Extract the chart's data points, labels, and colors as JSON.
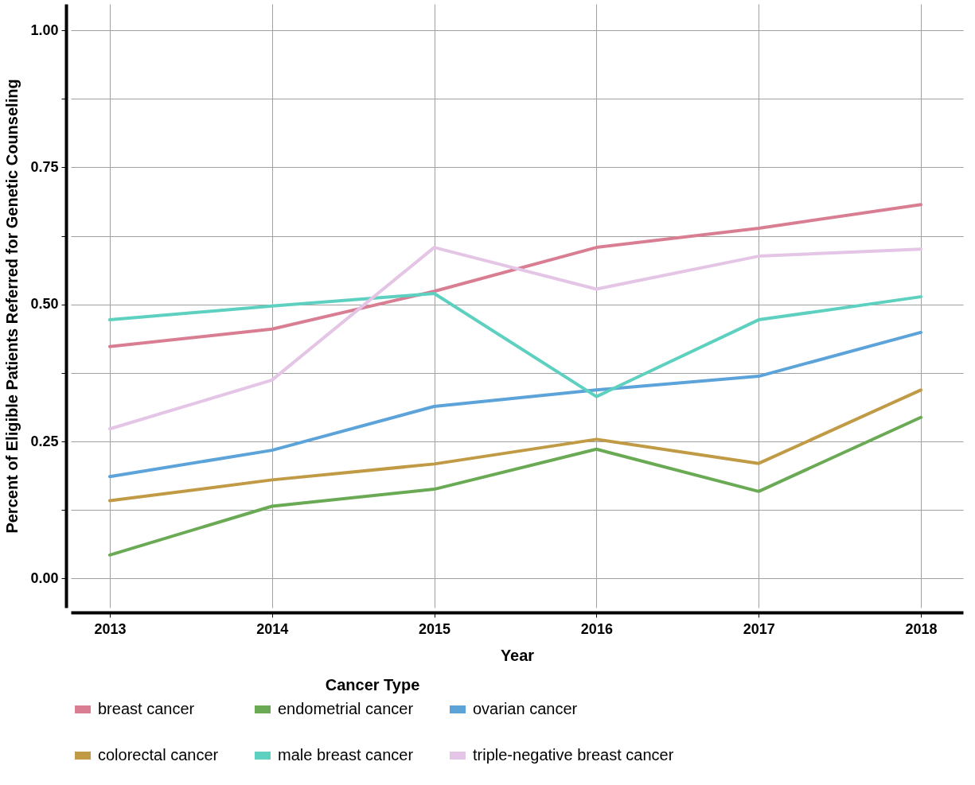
{
  "chart_data": {
    "type": "line",
    "xlabel": "Year",
    "ylabel": "Percent of Eligible Patients Referred for Genetic Counseling",
    "legend_title": "Cancer Type",
    "x": [
      2013,
      2014,
      2015,
      2016,
      2017,
      2018
    ],
    "series": [
      {
        "name": "breast cancer",
        "color": "#d97e92",
        "values": [
          0.423,
          0.455,
          0.524,
          0.604,
          0.639,
          0.682
        ]
      },
      {
        "name": "endometrial cancer",
        "color": "#6aaa55",
        "values": [
          0.043,
          0.132,
          0.163,
          0.236,
          0.159,
          0.294
        ]
      },
      {
        "name": "ovarian cancer",
        "color": "#5ba3d9",
        "values": [
          0.186,
          0.234,
          0.314,
          0.344,
          0.369,
          0.449
        ]
      },
      {
        "name": "colorectal cancer",
        "color": "#c09a45",
        "values": [
          0.142,
          0.18,
          0.209,
          0.254,
          0.21,
          0.344
        ]
      },
      {
        "name": "male breast cancer",
        "color": "#5ed0c0",
        "values": [
          0.472,
          0.497,
          0.52,
          0.332,
          0.472,
          0.514
        ]
      },
      {
        "name": "triple-negative breast cancer",
        "color": "#e4c5e6",
        "values": [
          0.273,
          0.362,
          0.604,
          0.528,
          0.588,
          0.601
        ]
      }
    ],
    "xlim": [
      2012.76,
      2018.26
    ],
    "xticks": [
      2013,
      2014,
      2015,
      2016,
      2017,
      2018
    ],
    "ylim": [
      -0.053,
      1.048
    ],
    "yticks": [
      {
        "value": 0,
        "label": "0.00"
      },
      {
        "value": 0.125,
        "label": null
      },
      {
        "value": 0.25,
        "label": "0.25"
      },
      {
        "value": 0.375,
        "label": null
      },
      {
        "value": 0.5,
        "label": "0.50"
      },
      {
        "value": 0.625,
        "label": null
      },
      {
        "value": 0.75,
        "label": "0.75"
      },
      {
        "value": 0.875,
        "label": null
      },
      {
        "value": 1.0,
        "label": "1.00"
      }
    ],
    "grid": true,
    "legend": "bottom",
    "marker": "none",
    "line_style": "solid"
  }
}
